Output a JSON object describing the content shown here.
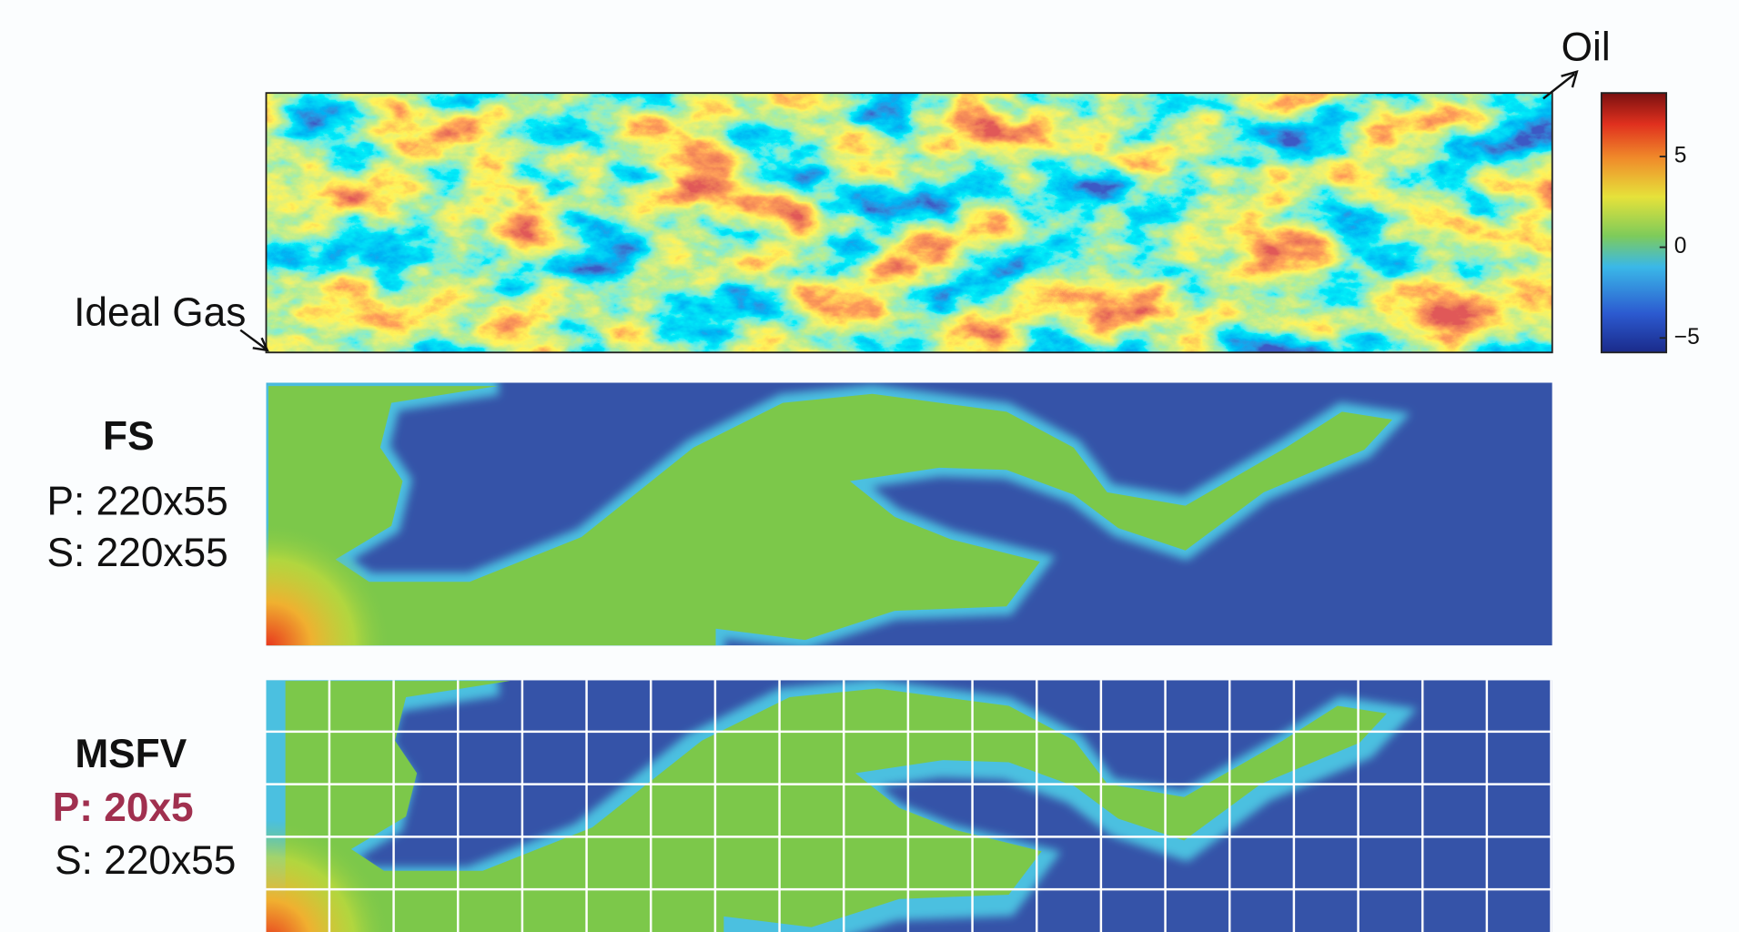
{
  "labels": {
    "oil": "Oil",
    "ideal_gas": "Ideal Gas"
  },
  "colorbar": {
    "range": [
      -5.8,
      8.5
    ],
    "ticks": [
      {
        "value": 5,
        "label": "5"
      },
      {
        "value": 0,
        "label": "0"
      },
      {
        "value": -5,
        "label": "−5"
      }
    ]
  },
  "panels": [
    {
      "title": "FS",
      "pressure": "P: 220x55",
      "saturation": "S: 220x55"
    },
    {
      "title": "MSFV",
      "pressure": "P: 20x5",
      "saturation": "S: 220x55"
    }
  ]
}
